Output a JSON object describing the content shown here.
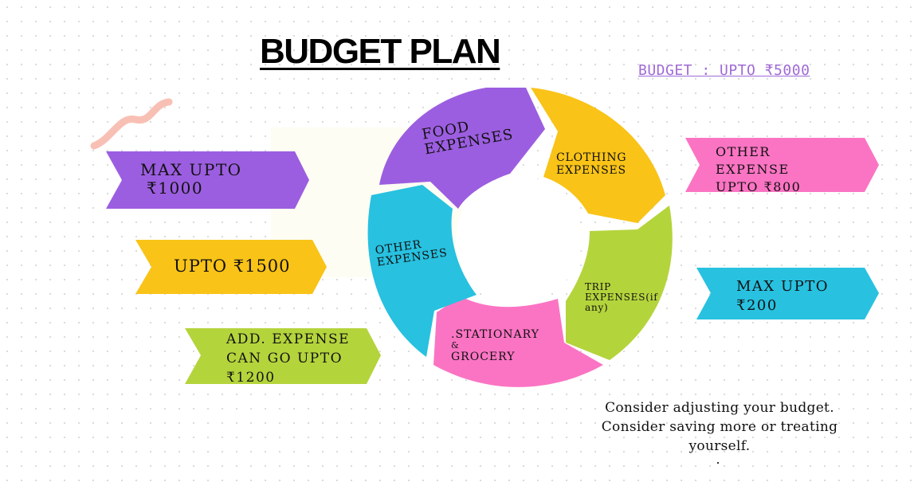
{
  "title": "BUDGET PLAN",
  "budget_link": "BUDGET : UPTO ₹5000",
  "left_arrows": [
    {
      "line1": "MAX UPTO",
      "line2": "₹1000",
      "color": "#9c5ee0"
    },
    {
      "line1": "UPTO ₹1500",
      "color": "#f9c318"
    },
    {
      "line1": "ADD. EXPENSE",
      "line2": "CAN GO UPTO",
      "line3": "₹1200",
      "color": "#b4d43c"
    }
  ],
  "right_arrows": [
    {
      "line1": "OTHER",
      "line2": "EXPENSE",
      "line3": "UPTO ₹800",
      "color": "#fb74c3"
    },
    {
      "line1": "MAX UPTO",
      "line2": "₹200",
      "color": "#28c1e0"
    }
  ],
  "cycle_segments": [
    {
      "line1": "FOOD",
      "line2": "EXPENSES",
      "color": "#9c5ee0"
    },
    {
      "line1": "CLOTHING",
      "line2": "EXPENSES",
      "color": "#f9c318"
    },
    {
      "line1": "TRIP",
      "line2": "EXPENSES(if",
      "line3": "any)",
      "color": "#b4d43c"
    },
    {
      "line1": ".STATIONARY",
      "line2": "&",
      "line3": "GROCERY",
      "color": "#fb74c3"
    },
    {
      "line1": "OTHER",
      "line2": "EXPENSES",
      "color": "#28c1e0"
    }
  ],
  "note": {
    "line1": "Consider adjusting your budget.",
    "line2": "Consider saving more or treating",
    "line3": "yourself."
  },
  "decoration": {
    "squiggle_color": "#f8c0b4"
  }
}
